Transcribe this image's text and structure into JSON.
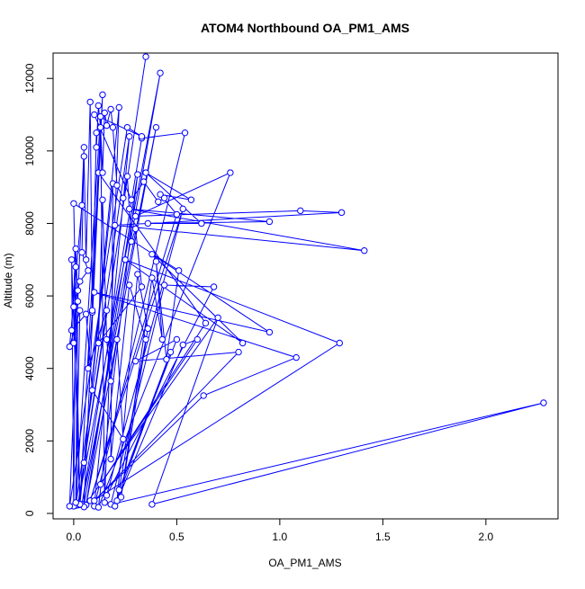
{
  "chart_data": {
    "type": "line",
    "title": "ATOM4 Northbound OA_PM1_AMS",
    "xlabel": "OA_PM1_AMS",
    "ylabel": "Altitude (m)",
    "xlim": [
      -0.1,
      2.35
    ],
    "ylim": [
      -150,
      12700
    ],
    "x_ticks": [
      0.0,
      0.5,
      1.0,
      1.5,
      2.0
    ],
    "x_tick_labels": [
      "0.0",
      "0.5",
      "1.0",
      "1.5",
      "2.0"
    ],
    "y_ticks": [
      0,
      2000,
      4000,
      6000,
      8000,
      10000,
      12000
    ],
    "y_tick_labels": [
      "0",
      "2000",
      "4000",
      "6000",
      "8000",
      "10000",
      "12000"
    ],
    "grid": false,
    "marker": "open-circle",
    "series": [
      {
        "color": "#0000ff",
        "points": [
          [
            0.35,
            12600
          ],
          [
            0.02,
            230
          ],
          [
            0.42,
            12150
          ],
          [
            0.05,
            250
          ],
          [
            0.14,
            11550
          ],
          [
            0.03,
            240
          ],
          [
            0.22,
            11200
          ],
          [
            0.15,
            300
          ],
          [
            0.13,
            10950
          ],
          [
            0.01,
            220
          ],
          [
            0.27,
            10400
          ],
          [
            0.1,
            200
          ],
          [
            0.54,
            10500
          ],
          [
            0.33,
            10350
          ],
          [
            0.04,
            250
          ],
          [
            0.4,
            10650
          ],
          [
            0.06,
            230
          ],
          [
            0.31,
            9350
          ],
          [
            0.12,
            170
          ],
          [
            0.76,
            9400
          ],
          [
            0.3,
            8200
          ],
          [
            1.1,
            8350
          ],
          [
            1.3,
            8300
          ],
          [
            0.2,
            7950
          ],
          [
            1.41,
            7250
          ],
          [
            0.27,
            8400
          ],
          [
            0.95,
            8050
          ],
          [
            0.36,
            8000
          ],
          [
            0.62,
            8000
          ],
          [
            0.35,
            9400
          ],
          [
            0.57,
            8650
          ],
          [
            0.42,
            8800
          ],
          [
            0.5,
            8250
          ],
          [
            0.08,
            350
          ],
          [
            0.53,
            8400
          ],
          [
            0.16,
            500
          ],
          [
            0.68,
            6250
          ],
          [
            0.44,
            6300
          ],
          [
            0.18,
            250
          ],
          [
            2.28,
            3050
          ],
          [
            0.38,
            250
          ],
          [
            0.7,
            5400
          ],
          [
            0.05,
            180
          ],
          [
            1.29,
            4700
          ],
          [
            0.25,
            7000
          ],
          [
            0.82,
            4700
          ],
          [
            0.38,
            7150
          ],
          [
            0.95,
            5000
          ],
          [
            0.1,
            6100
          ],
          [
            1.08,
            4300
          ],
          [
            0.63,
            3250
          ],
          [
            0.1,
            350
          ],
          [
            0.8,
            4450
          ],
          [
            0.3,
            4200
          ],
          [
            0.5,
            4800
          ],
          [
            0.22,
            650
          ],
          [
            0.47,
            4450
          ],
          [
            0.2,
            200
          ],
          [
            0.53,
            4650
          ],
          [
            0.6,
            4800
          ],
          [
            0.13,
            800
          ],
          [
            0.64,
            5250
          ],
          [
            0.12,
            9400
          ],
          [
            0.09,
            5550
          ],
          [
            0.07,
            4000
          ],
          [
            0.16,
            5600
          ],
          [
            0.05,
            1400
          ],
          [
            0.19,
            9100
          ],
          [
            0.18,
            1500
          ],
          [
            0.27,
            6300
          ],
          [
            0.35,
            4800
          ],
          [
            0.21,
            350
          ],
          [
            0.31,
            6600
          ],
          [
            0.36,
            5100
          ],
          [
            0.23,
            450
          ],
          [
            0.38,
            6500
          ],
          [
            0.43,
            4800
          ],
          [
            0.4,
            6950
          ],
          [
            0.45,
            4250
          ],
          [
            0.51,
            6700
          ],
          [
            0.0,
            8550
          ],
          [
            0.03,
            250
          ],
          [
            -0.01,
            7000
          ],
          [
            0.0,
            200
          ],
          [
            0.01,
            6800
          ],
          [
            0.0,
            4700
          ],
          [
            0.02,
            6150
          ],
          [
            0.01,
            300
          ],
          [
            0.03,
            5600
          ],
          [
            -0.02,
            4600
          ],
          [
            0.04,
            8500
          ],
          [
            0.05,
            9850
          ],
          [
            0.06,
            7000
          ],
          [
            0.08,
            11350
          ],
          [
            0.09,
            5600
          ],
          [
            0.11,
            10500
          ],
          [
            0.11,
            10100
          ],
          [
            0.12,
            11250
          ],
          [
            0.13,
            10650
          ],
          [
            0.14,
            9400
          ],
          [
            0.15,
            11050
          ],
          [
            0.16,
            10700
          ],
          [
            0.18,
            11150
          ],
          [
            0.19,
            10650
          ],
          [
            0.21,
            9050
          ],
          [
            0.24,
            8700
          ],
          [
            0.26,
            9300
          ],
          [
            0.28,
            7500
          ],
          [
            0.3,
            7850
          ],
          [
            0.33,
            6250
          ],
          [
            0.12,
            4700
          ],
          [
            0.14,
            8650
          ],
          [
            0.16,
            4800
          ],
          [
            0.18,
            3650
          ],
          [
            0.21,
            4800
          ],
          [
            0.24,
            2050
          ],
          [
            0.09,
            3400
          ],
          [
            0.06,
            5500
          ],
          [
            -0.01,
            5050
          ],
          [
            0.01,
            7300
          ],
          [
            0.02,
            5850
          ],
          [
            0.0,
            5700
          ],
          [
            0.03,
            6400
          ],
          [
            0.07,
            6700
          ],
          [
            0.04,
            7200
          ],
          [
            0.05,
            10100
          ],
          [
            -0.02,
            200
          ],
          [
            0.26,
            10650
          ],
          [
            0.33,
            10400
          ],
          [
            0.1,
            11000
          ],
          [
            0.28,
            8650
          ],
          [
            0.34,
            9150
          ],
          [
            0.41,
            8600
          ],
          [
            0.44,
            8700
          ]
        ]
      }
    ]
  }
}
